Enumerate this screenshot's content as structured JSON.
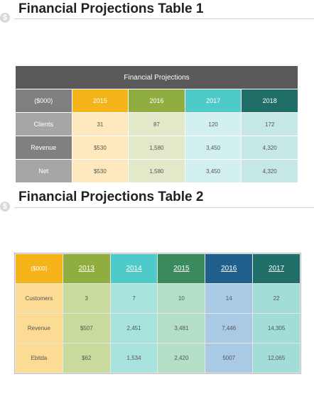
{
  "table1": {
    "title": "Financial Projections Table 1",
    "caption": "Financial Projections",
    "header": [
      "($000)",
      "2015",
      "2016",
      "2017",
      "2018"
    ],
    "rows": [
      [
        "Clients",
        "31",
        "87",
        "120",
        "172"
      ],
      [
        "Revenue",
        "$530",
        "1,580",
        "3,450",
        "4,320"
      ],
      [
        "Net",
        "$530",
        "1,580",
        "3,450",
        "4,320"
      ]
    ]
  },
  "table2": {
    "title": "Financial Projections Table 2",
    "header": [
      "($000)",
      "2013",
      "2014",
      "2015",
      "2016",
      "2017"
    ],
    "rows": [
      [
        "Customers",
        "3",
        "7",
        "10",
        "14",
        "22"
      ],
      [
        "Revenue",
        "$507",
        "2,451",
        "3,481",
        "7,446",
        "14,305"
      ],
      [
        "Ebitda",
        "$62",
        "1,534",
        "2,420",
        "5007",
        "12,065"
      ]
    ]
  }
}
